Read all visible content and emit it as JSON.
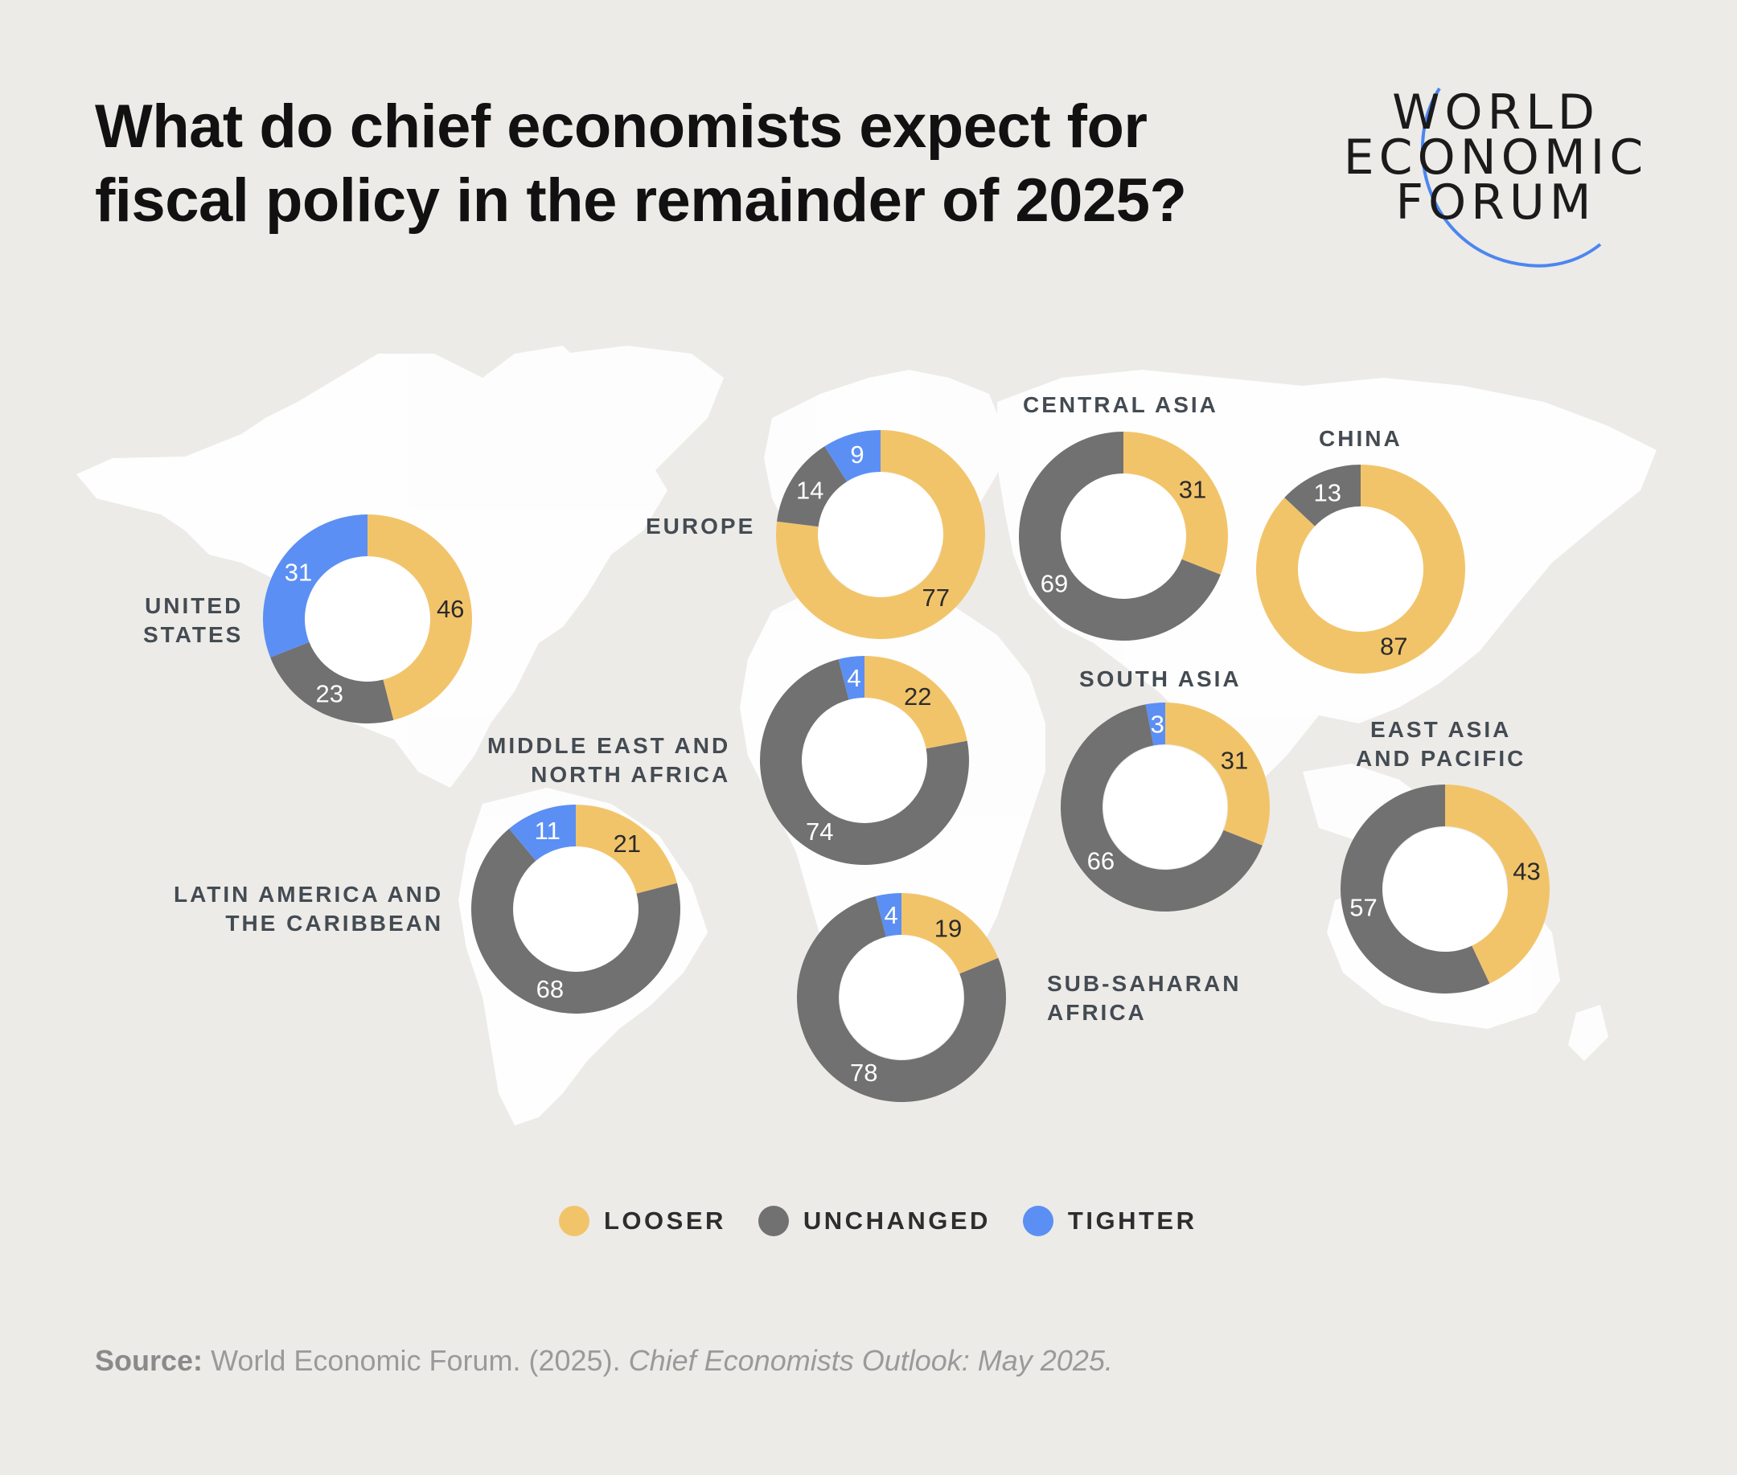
{
  "title_line1": "What do chief economists expect for",
  "title_line2": "fiscal policy in the remainder of 2025?",
  "logo": {
    "line1": "WORLD",
    "line2": "ECONOMIC",
    "line3": "FORUM"
  },
  "colors": {
    "looser": "#f2c46a",
    "unchanged": "#717171",
    "tighter": "#5b8ff4",
    "background": "#ecebe8",
    "map": "#ffffff",
    "logo_arc": "#4c86f0"
  },
  "legend": [
    {
      "key": "looser",
      "label": "LOOSER"
    },
    {
      "key": "unchanged",
      "label": "UNCHANGED"
    },
    {
      "key": "tighter",
      "label": "TIGHTER"
    }
  ],
  "source": {
    "label": "Source:",
    "text": "World Economic Forum. (2025).",
    "italic": "Chief Economists Outlook: May 2025."
  },
  "chart_data": {
    "type": "donut",
    "unit": "%",
    "series_order": [
      "Looser",
      "Unchanged",
      "Tighter"
    ],
    "regions": [
      {
        "id": "united-states",
        "label_lines": [
          "UNITED",
          "STATES"
        ],
        "looser": 46,
        "unchanged": 23,
        "tighter": 31
      },
      {
        "id": "europe",
        "label_lines": [
          "EUROPE"
        ],
        "looser": 77,
        "unchanged": 14,
        "tighter": 9
      },
      {
        "id": "central-asia",
        "label_lines": [
          "CENTRAL ASIA"
        ],
        "looser": 31,
        "unchanged": 69,
        "tighter": 0
      },
      {
        "id": "china",
        "label_lines": [
          "CHINA"
        ],
        "looser": 87,
        "unchanged": 13,
        "tighter": 0
      },
      {
        "id": "middle-east-north-africa",
        "label_lines": [
          "MIDDLE EAST AND",
          "NORTH AFRICA"
        ],
        "looser": 22,
        "unchanged": 74,
        "tighter": 4
      },
      {
        "id": "south-asia",
        "label_lines": [
          "SOUTH ASIA"
        ],
        "looser": 31,
        "unchanged": 66,
        "tighter": 3
      },
      {
        "id": "east-asia-pacific",
        "label_lines": [
          "EAST ASIA",
          "AND PACIFIC"
        ],
        "looser": 43,
        "unchanged": 57,
        "tighter": 0
      },
      {
        "id": "latin-america-caribbean",
        "label_lines": [
          "LATIN AMERICA AND",
          "THE CARIBBEAN"
        ],
        "looser": 21,
        "unchanged": 68,
        "tighter": 11
      },
      {
        "id": "sub-saharan-africa",
        "label_lines": [
          "SUB-SAHARAN",
          "AFRICA"
        ],
        "looser": 19,
        "unchanged": 78,
        "tighter": 4
      }
    ]
  }
}
